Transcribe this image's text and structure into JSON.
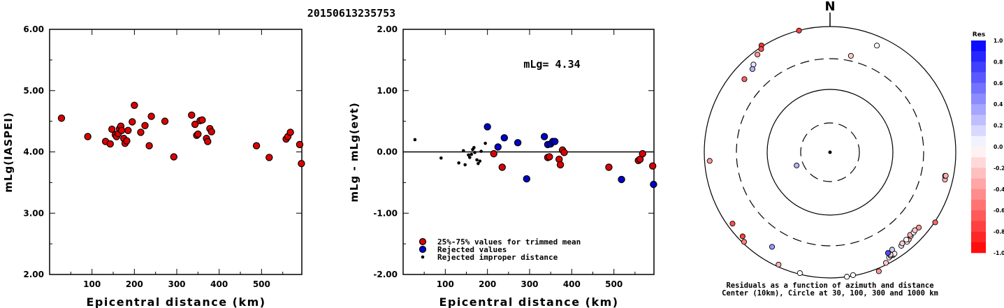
{
  "event_title": "20150613235753",
  "north_label": "N",
  "chart_data": [
    {
      "type": "scatter",
      "id": "magnitude-vs-distance",
      "xlabel": "Epicentral distance (km)",
      "ylabel": "mLg(IASPEI)",
      "xlim": [
        0,
        595
      ],
      "ylim": [
        2.0,
        6.0
      ],
      "x_ticks": [
        "100",
        "200",
        "300",
        "400",
        "500"
      ],
      "x_tick_values": [
        100,
        200,
        300,
        400,
        500
      ],
      "y_ticks": [
        "2.00",
        "3.00",
        "4.00",
        "5.00",
        "6.00"
      ],
      "y_tick_values": [
        2,
        3,
        4,
        5,
        6
      ],
      "grid": false,
      "series": [
        {
          "color": "#dd0000",
          "points": [
            [
              28,
              4.55
            ],
            [
              90,
              4.25
            ],
            [
              132,
              4.17
            ],
            [
              143,
              4.13
            ],
            [
              147,
              4.37
            ],
            [
              155,
              4.28
            ],
            [
              158,
              4.25
            ],
            [
              162,
              4.3
            ],
            [
              165,
              4.38
            ],
            [
              168,
              4.42
            ],
            [
              170,
              4.35
            ],
            [
              175,
              4.22
            ],
            [
              178,
              4.14
            ],
            [
              182,
              4.18
            ],
            [
              185,
              4.35
            ],
            [
              195,
              4.49
            ],
            [
              200,
              4.76
            ],
            [
              215,
              4.32
            ],
            [
              225,
              4.43
            ],
            [
              235,
              4.1
            ],
            [
              240,
              4.58
            ],
            [
              272,
              4.5
            ],
            [
              293,
              3.92
            ],
            [
              335,
              4.6
            ],
            [
              343,
              4.45
            ],
            [
              347,
              4.27
            ],
            [
              350,
              4.29
            ],
            [
              355,
              4.51
            ],
            [
              360,
              4.52
            ],
            [
              370,
              4.22
            ],
            [
              373,
              4.17
            ],
            [
              378,
              4.38
            ],
            [
              382,
              4.33
            ],
            [
              488,
              4.1
            ],
            [
              518,
              3.91
            ],
            [
              558,
              4.21
            ],
            [
              562,
              4.25
            ],
            [
              568,
              4.32
            ],
            [
              590,
              4.12
            ],
            [
              594,
              3.81
            ]
          ]
        }
      ]
    },
    {
      "type": "scatter",
      "id": "residual-vs-distance",
      "xlabel": "Epicentral distance (km)",
      "ylabel": "mLg - mLg(evt)",
      "xlim": [
        0,
        595
      ],
      "ylim": [
        -2.0,
        2.0
      ],
      "x_ticks": [
        "100",
        "200",
        "300",
        "400",
        "500"
      ],
      "x_tick_values": [
        100,
        200,
        300,
        400,
        500
      ],
      "y_ticks": [
        "-2.00",
        "-1.00",
        "0.00",
        "1.00",
        "2.00"
      ],
      "y_tick_values": [
        -2,
        -1,
        0,
        1,
        2
      ],
      "zero_line": 0,
      "annotation": "mLg= 4.34",
      "grid": false,
      "legend": [
        {
          "label": "25%-75% values for trimmed mean",
          "color": "#dd0000",
          "marker": "circle"
        },
        {
          "label": "Rejected values",
          "color": "#0000cc",
          "marker": "circle"
        },
        {
          "label": "Rejected improper distance",
          "color": "#000000",
          "marker": "dot"
        }
      ],
      "series": [
        {
          "name": "25%-75% values for trimmed mean",
          "color": "#dd0000",
          "points": [
            [
              215,
              -0.03
            ],
            [
              235,
              -0.25
            ],
            [
              343,
              -0.09
            ],
            [
              347,
              -0.08
            ],
            [
              370,
              -0.12
            ],
            [
              373,
              -0.21
            ],
            [
              378,
              0.03
            ],
            [
              382,
              -0.01
            ],
            [
              488,
              -0.25
            ],
            [
              558,
              -0.14
            ],
            [
              562,
              -0.12
            ],
            [
              568,
              -0.03
            ],
            [
              592,
              -0.23
            ]
          ]
        },
        {
          "name": "Rejected values",
          "color": "#0000cc",
          "points": [
            [
              200,
              0.41
            ],
            [
              225,
              0.08
            ],
            [
              240,
              0.23
            ],
            [
              272,
              0.15
            ],
            [
              293,
              -0.44
            ],
            [
              335,
              0.25
            ],
            [
              343,
              0.12
            ],
            [
              350,
              0.13
            ],
            [
              355,
              0.17
            ],
            [
              360,
              0.17
            ],
            [
              518,
              -0.45
            ],
            [
              594,
              -0.53
            ]
          ]
        },
        {
          "name": "Rejected improper distance",
          "color": "#000000",
          "points": [
            [
              28,
              0.2
            ],
            [
              90,
              -0.1
            ],
            [
              132,
              -0.18
            ],
            [
              143,
              0.02
            ],
            [
              147,
              -0.21
            ],
            [
              155,
              -0.05
            ],
            [
              158,
              -0.09
            ],
            [
              162,
              -0.04
            ],
            [
              165,
              0.04
            ],
            [
              168,
              0.07
            ],
            [
              170,
              -0.01
            ],
            [
              175,
              -0.13
            ],
            [
              178,
              -0.19
            ],
            [
              182,
              -0.15
            ],
            [
              185,
              0.01
            ],
            [
              195,
              0.14
            ]
          ]
        }
      ]
    },
    {
      "type": "scatter",
      "id": "residual-azimuth-polar",
      "caption_line1": "Residuals as a function of azimuth and distance",
      "caption_line2": "Center (10km), Circle at 30, 100, 300 and 1000 km",
      "rings_km": [
        30,
        100,
        300,
        1000
      ],
      "ring_styles": [
        "dashed",
        "solid",
        "dashed",
        "solid"
      ],
      "points": [
        {
          "az": 345.7,
          "dist": 995,
          "res": -0.75
        },
        {
          "az": 327.3,
          "dist": 1028,
          "res": -0.8
        },
        {
          "az": 326.3,
          "dist": 939,
          "res": -0.7
        },
        {
          "az": 323.4,
          "dist": 860,
          "res": -0.4
        },
        {
          "az": 318.9,
          "dist": 706,
          "res": 0.1
        },
        {
          "az": 317.0,
          "dist": 638,
          "res": 0.3
        },
        {
          "az": 310.5,
          "dist": 611,
          "res": -0.6
        },
        {
          "az": 248.4,
          "dist": 38,
          "res": 0.3
        },
        {
          "az": 23.7,
          "dist": 708,
          "res": 0.0
        },
        {
          "az": 12.2,
          "dist": 363,
          "res": -0.2
        },
        {
          "az": 265.9,
          "dist": 826,
          "res": -0.4
        },
        {
          "az": 233.8,
          "dist": 832,
          "res": -0.7
        },
        {
          "az": 226.1,
          "dist": 846,
          "res": -0.75
        },
        {
          "az": 223.8,
          "dist": 943,
          "res": -0.5
        },
        {
          "az": 211.5,
          "dist": 574,
          "res": 0.4
        },
        {
          "az": 204.6,
          "dist": 924,
          "res": -0.3
        },
        {
          "az": 194.0,
          "dist": 957,
          "res": 0.0
        },
        {
          "az": 172.3,
          "dist": 996,
          "res": 0.0
        },
        {
          "az": 169.4,
          "dist": 973,
          "res": 0.0
        },
        {
          "az": 157.7,
          "dist": 1069,
          "res": -0.4
        },
        {
          "az": 153.2,
          "dist": 935,
          "res": -0.2
        },
        {
          "az": 150.7,
          "dist": 827,
          "res": 0.0
        },
        {
          "az": 149.7,
          "dist": 806,
          "res": 0.2
        },
        {
          "az": 148.5,
          "dist": 825,
          "res": 0.0
        },
        {
          "az": 148.9,
          "dist": 796,
          "res": 0.1
        },
        {
          "az": 147.6,
          "dist": 812,
          "res": 0.0
        },
        {
          "az": 149.4,
          "dist": 774,
          "res": -0.2
        },
        {
          "az": 150.1,
          "dist": 700,
          "res": 0.7
        },
        {
          "az": 147.5,
          "dist": 682,
          "res": 0.2
        },
        {
          "az": 142.7,
          "dist": 737,
          "res": 0.1
        },
        {
          "az": 139.3,
          "dist": 751,
          "res": 0.0
        },
        {
          "az": 141.6,
          "dist": 701,
          "res": -0.2
        },
        {
          "az": 137.9,
          "dist": 734,
          "res": -0.3
        },
        {
          "az": 138.9,
          "dist": 694,
          "res": 0.0
        },
        {
          "az": 136.1,
          "dist": 704,
          "res": 0.0
        },
        {
          "az": 135.9,
          "dist": 670,
          "res": -0.3
        },
        {
          "az": 133.8,
          "dist": 689,
          "res": 0.0
        },
        {
          "az": 132.6,
          "dist": 675,
          "res": -0.2
        },
        {
          "az": 130.3,
          "dist": 705,
          "res": -0.4
        },
        {
          "az": 123.7,
          "dist": 1015,
          "res": -0.6
        },
        {
          "az": 103.4,
          "dist": 751,
          "res": -0.3
        },
        {
          "az": 101.6,
          "dist": 731,
          "res": 0.0
        },
        {
          "az": 101.5,
          "dist": 750,
          "res": -0.3
        }
      ]
    }
  ],
  "colorbar": {
    "title": "Res",
    "ticks": [
      "1.0",
      "0.8",
      "0.6",
      "0.4",
      "0.2",
      "0.0",
      "-0.2",
      "-0.4",
      "-0.6",
      "-0.8",
      "-1.0"
    ],
    "tick_values": [
      1.0,
      0.8,
      0.6,
      0.4,
      0.2,
      0.0,
      -0.2,
      -0.4,
      -0.6,
      -0.8,
      -1.0
    ],
    "positive_color": "#0000ff",
    "negative_color": "#ff0000",
    "neutral_color": "#ffffff"
  }
}
